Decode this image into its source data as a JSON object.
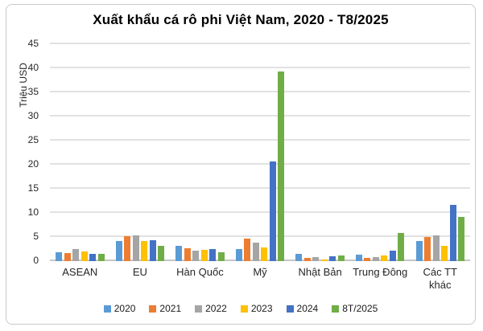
{
  "chart_data": {
    "type": "bar",
    "title": "Xuất khẩu cá rô phi Việt Nam, 2020 - T8/2025",
    "xlabel": "",
    "ylabel": "Triệu USD",
    "ylim": [
      0,
      45
    ],
    "yticks": [
      0,
      5,
      10,
      15,
      20,
      25,
      30,
      35,
      40,
      45
    ],
    "grid": true,
    "legend_position": "bottom",
    "categories": [
      "ASEAN",
      "EU",
      "Hàn Quốc",
      "Mỹ",
      "Nhật Bản",
      "Trung Đông",
      "Các TT khác"
    ],
    "series": [
      {
        "name": "2020",
        "color": "#5B9BD5",
        "values": [
          1.8,
          4.1,
          3.1,
          2.5,
          1.5,
          1.4,
          4.1
        ]
      },
      {
        "name": "2021",
        "color": "#ED7D31",
        "values": [
          1.6,
          5.2,
          2.6,
          4.7,
          0.7,
          0.6,
          5.0
        ]
      },
      {
        "name": "2022",
        "color": "#A5A5A5",
        "values": [
          2.5,
          5.4,
          2.2,
          3.8,
          0.8,
          0.8,
          5.3
        ]
      },
      {
        "name": "2023",
        "color": "#FFC000",
        "values": [
          2.0,
          4.2,
          2.3,
          2.8,
          0.3,
          1.2,
          3.2
        ]
      },
      {
        "name": "2024",
        "color": "#4472C4",
        "values": [
          1.5,
          4.4,
          2.5,
          20.6,
          1.0,
          2.2,
          11.6
        ]
      },
      {
        "name": "8T/2025",
        "color": "#70AD47",
        "values": [
          1.5,
          3.1,
          1.9,
          39.3,
          1.2,
          5.9,
          9.1
        ]
      }
    ]
  }
}
